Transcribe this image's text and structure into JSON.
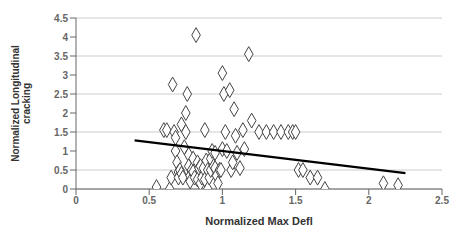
{
  "chart_data": {
    "type": "scatter",
    "xlabel": "Normalized Max Defl",
    "ylabel": "Normalized Longitudinal\ncracking",
    "xlim": [
      0,
      2.5
    ],
    "ylim": [
      0,
      4.5
    ],
    "xticks": [
      0,
      0.5,
      1,
      1.5,
      2,
      2.5
    ],
    "yticks": [
      0,
      0.5,
      1,
      1.5,
      2,
      2.5,
      3,
      3.5,
      4,
      4.5
    ],
    "grid": "y",
    "series": [
      {
        "type": "scatter",
        "marker": "diamond",
        "color": "#444444",
        "x": [
          0.55,
          0.6,
          0.62,
          0.64,
          0.65,
          0.66,
          0.67,
          0.68,
          0.68,
          0.69,
          0.7,
          0.7,
          0.71,
          0.72,
          0.72,
          0.73,
          0.74,
          0.75,
          0.75,
          0.76,
          0.77,
          0.77,
          0.78,
          0.78,
          0.79,
          0.8,
          0.8,
          0.81,
          0.82,
          0.83,
          0.83,
          0.84,
          0.85,
          0.85,
          0.86,
          0.87,
          0.88,
          0.88,
          0.89,
          0.9,
          0.9,
          0.91,
          0.92,
          0.92,
          0.93,
          0.94,
          0.95,
          0.95,
          0.96,
          0.97,
          0.98,
          0.99,
          1.0,
          1.0,
          1.01,
          1.02,
          1.03,
          1.05,
          1.06,
          1.07,
          1.08,
          1.09,
          1.1,
          1.12,
          1.14,
          1.15,
          1.18,
          1.2,
          1.25,
          1.3,
          1.35,
          1.4,
          1.45,
          1.48,
          1.5,
          1.52,
          1.55,
          1.6,
          1.65,
          1.7,
          2.1,
          2.2
        ],
        "values": [
          0.05,
          1.55,
          1.55,
          0.0,
          0.3,
          2.75,
          1.5,
          1.0,
          1.35,
          0.7,
          0.45,
          0.3,
          0.5,
          0.4,
          1.7,
          0.3,
          1.1,
          2.0,
          1.5,
          2.5,
          0.9,
          0.6,
          0.35,
          0.2,
          0.5,
          0.8,
          0.45,
          0.3,
          4.05,
          0.7,
          0.25,
          0.55,
          0.6,
          0.15,
          0.3,
          0.55,
          0.25,
          1.55,
          0.75,
          0.5,
          0.0,
          0.3,
          0.5,
          0.8,
          1.0,
          0.6,
          0.95,
          0.55,
          0.35,
          0.15,
          0.5,
          0.5,
          1.05,
          3.05,
          2.5,
          1.5,
          1.0,
          2.6,
          0.5,
          0.7,
          2.1,
          1.4,
          0.95,
          0.55,
          1.55,
          1.05,
          3.55,
          1.8,
          1.5,
          1.5,
          1.5,
          1.5,
          1.5,
          1.5,
          1.5,
          0.5,
          0.5,
          0.3,
          0.3,
          0.0,
          0.15,
          0.1
        ]
      },
      {
        "type": "line",
        "color": "black",
        "x": [
          0.4,
          2.25
        ],
        "values": [
          1.28,
          0.42
        ]
      }
    ]
  }
}
